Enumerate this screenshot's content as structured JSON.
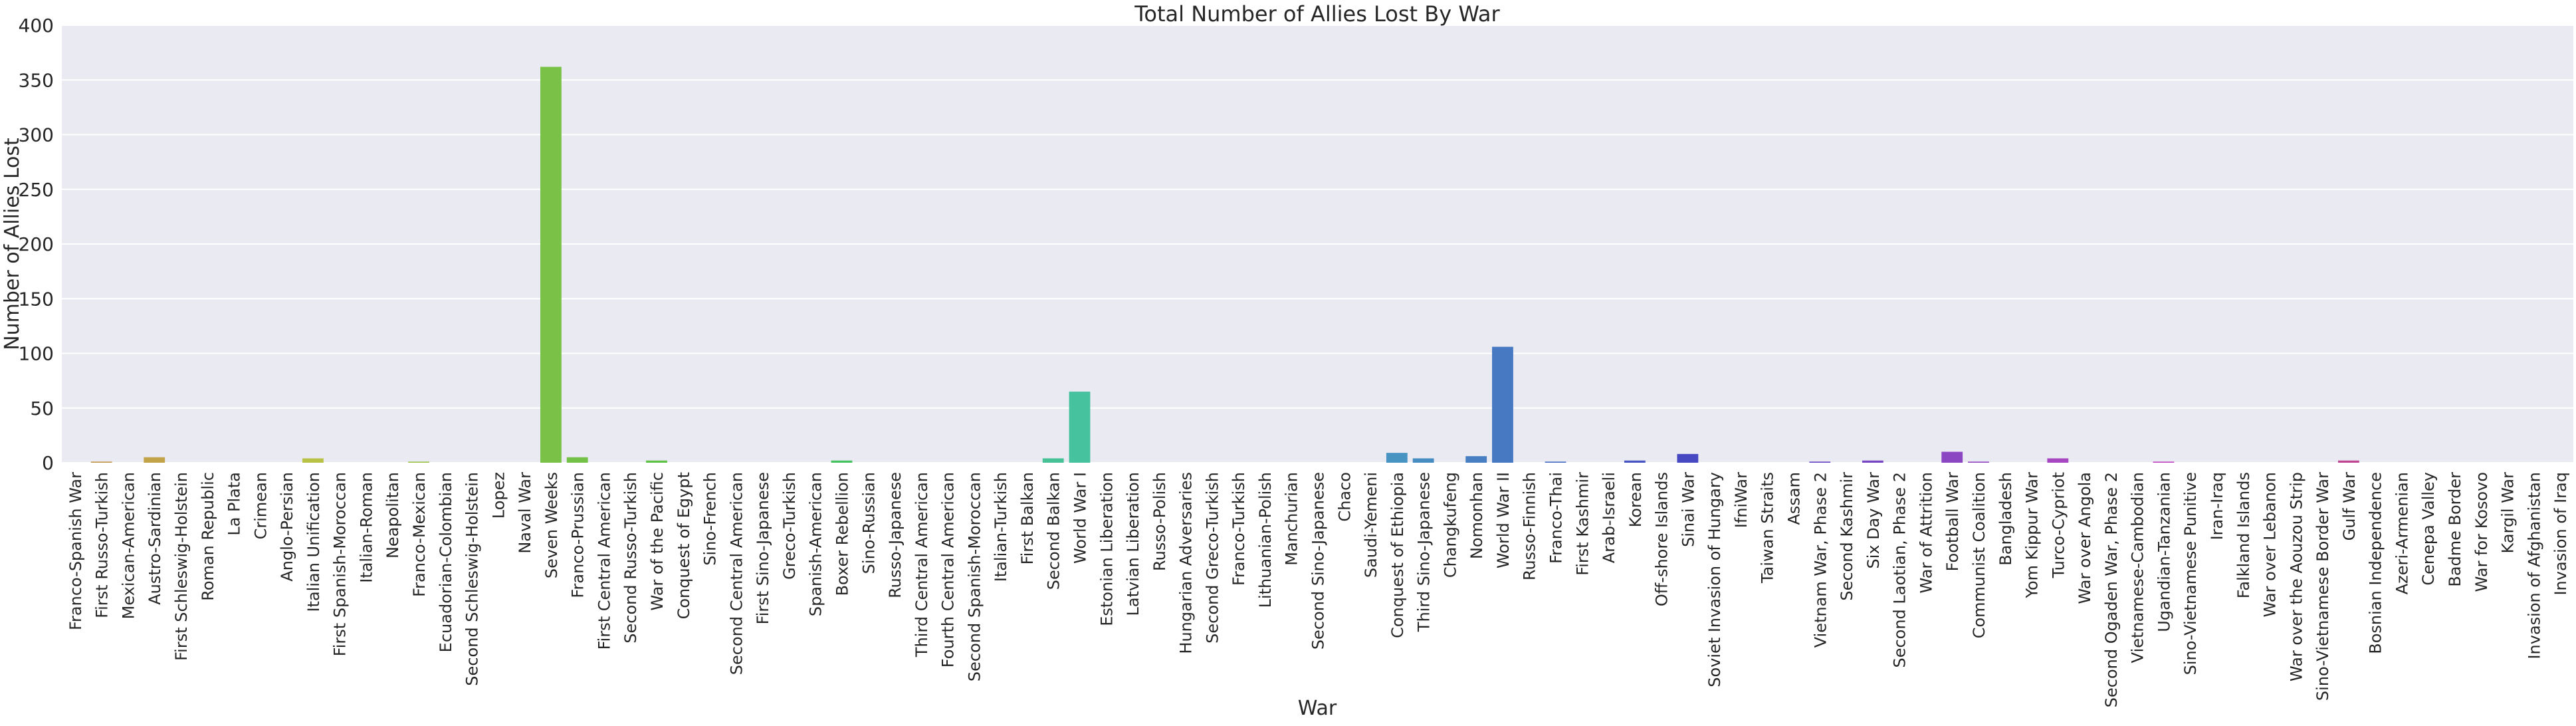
{
  "chart_data": {
    "type": "bar",
    "title": "Total Number of Allies Lost By War",
    "xlabel": "War",
    "ylabel": "Number of Allies Lost",
    "ylim": [
      0,
      400
    ],
    "yticks": [
      0,
      50,
      100,
      150,
      200,
      250,
      300,
      350,
      400
    ],
    "grid": true,
    "categories": [
      "Franco-Spanish War",
      "First Russo-Turkish",
      "Mexican-American",
      "Austro-Sardinian",
      "First Schleswig-Holstein",
      "Roman Republic",
      "La Plata",
      "Crimean",
      "Anglo-Persian",
      "Italian Unification",
      "First Spanish-Moroccan",
      "Italian-Roman",
      "Neapolitan",
      "Franco-Mexican",
      "Ecuadorian-Colombian",
      "Second Schleswig-Holstein",
      "Lopez",
      "Naval War",
      "Seven Weeks",
      "Franco-Prussian",
      "First Central American",
      "Second Russo-Turkish",
      "War of the Pacific",
      "Conquest of Egypt",
      "Sino-French",
      "Second Central American",
      "First Sino-Japanese",
      "Greco-Turkish",
      "Spanish-American",
      "Boxer Rebellion",
      "Sino-Russian",
      "Russo-Japanese",
      "Third Central American",
      "Fourth Central American",
      "Second Spanish-Moroccan",
      "Italian-Turkish",
      "First Balkan",
      "Second Balkan",
      "World War I",
      "Estonian Liberation",
      "Latvian Liberation",
      "Russo-Polish",
      "Hungarian Adversaries",
      "Second Greco-Turkish",
      "Franco-Turkish",
      "Lithuanian-Polish",
      "Manchurian",
      "Second Sino-Japanese",
      "Chaco",
      "Saudi-Yemeni",
      "Conquest of Ethiopia",
      "Third Sino-Japanese",
      "Changkufeng",
      "Nomonhan",
      "World War II",
      "Russo-Finnish",
      "Franco-Thai",
      "First Kashmir",
      "Arab-Israeli",
      "Korean",
      "Off-shore Islands",
      "Sinai War",
      "Soviet Invasion of Hungary",
      "IfniWar",
      "Taiwan Straits",
      "Assam",
      "Vietnam War, Phase 2",
      "Second Kashmir",
      "Six Day War",
      "Second Laotian, Phase 2",
      "War of Attrition",
      "Football War",
      "Communist Coalition",
      "Bangladesh",
      "Yom Kippur War",
      "Turco-Cypriot",
      "War over Angola",
      "Second Ogaden War, Phase 2",
      "Vietnamese-Cambodian",
      "Ugandian-Tanzanian",
      "Sino-Vietnamese Punitive",
      "Iran-Iraq",
      "Falkland Islands",
      "War over Lebanon",
      "War over the Aouzou Strip",
      "Sino-Vietnamese Border War",
      "Gulf War",
      "Bosnian Independence",
      "Azeri-Armenian",
      "Cenepa Valley",
      "Badme Border",
      "War for Kosovo",
      "Kargil War",
      "Invasion of Afghanistan",
      "Invasion of Iraq"
    ],
    "values": [
      0,
      1,
      0,
      5,
      0,
      0,
      0,
      0,
      0,
      4,
      0,
      0,
      0,
      1,
      0,
      0,
      0,
      0,
      362,
      5,
      0,
      0,
      2,
      0,
      0,
      0,
      0,
      0,
      0,
      2,
      0,
      0,
      0,
      0,
      0,
      0,
      0,
      4,
      65,
      0,
      0,
      0,
      0,
      0,
      0,
      0,
      0,
      0,
      0,
      0,
      9,
      4,
      0,
      6,
      106,
      0,
      1,
      0,
      0,
      2,
      0,
      8,
      0,
      0,
      0,
      0,
      1,
      0,
      2,
      0,
      0,
      10,
      1,
      0,
      0,
      4,
      0,
      0,
      0,
      1,
      0,
      0,
      0,
      0,
      0,
      0,
      2,
      0,
      0,
      0,
      0,
      0,
      0,
      0,
      0
    ]
  }
}
